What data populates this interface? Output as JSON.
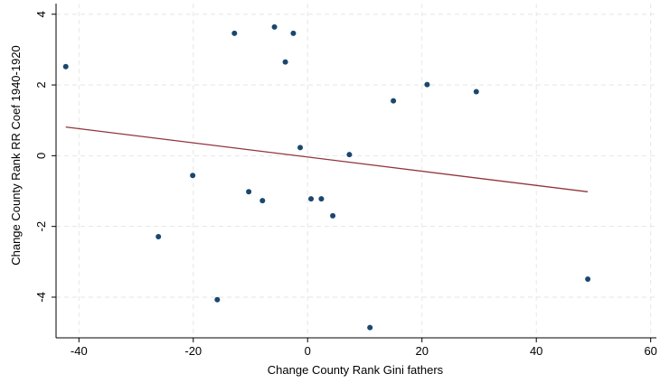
{
  "chart_data": {
    "type": "scatter",
    "x_label": "Change County Rank Gini fathers",
    "y_label": "Change County Rank RR Coef 1940-1920",
    "xlim": [
      -44,
      61
    ],
    "ylim": [
      -5.15,
      4.3
    ],
    "xticks": [
      -40,
      -20,
      0,
      20,
      40,
      60
    ],
    "yticks": [
      -4,
      -2,
      0,
      2,
      4
    ],
    "grid": true,
    "series": [
      {
        "color": "#1a476f",
        "x": [
          -42.3,
          -12.8,
          -5.8,
          -2.5,
          -3.9,
          20.9,
          29.5,
          15.0,
          -1.3,
          7.3,
          -20.1,
          -10.3,
          -7.9,
          0.6,
          2.4,
          4.4,
          -26.1,
          -15.8,
          10.9,
          49.0
        ],
        "values": [
          2.52,
          3.46,
          3.64,
          3.46,
          2.65,
          2.01,
          1.81,
          1.55,
          0.23,
          0.03,
          -0.56,
          -1.02,
          -1.27,
          -1.22,
          -1.22,
          -1.7,
          -2.29,
          -4.07,
          -4.86,
          -3.49
        ]
      }
    ],
    "fit": {
      "color": "#90353b",
      "x": [
        -42.3,
        49.0
      ],
      "values": [
        0.81,
        -1.02
      ]
    }
  }
}
